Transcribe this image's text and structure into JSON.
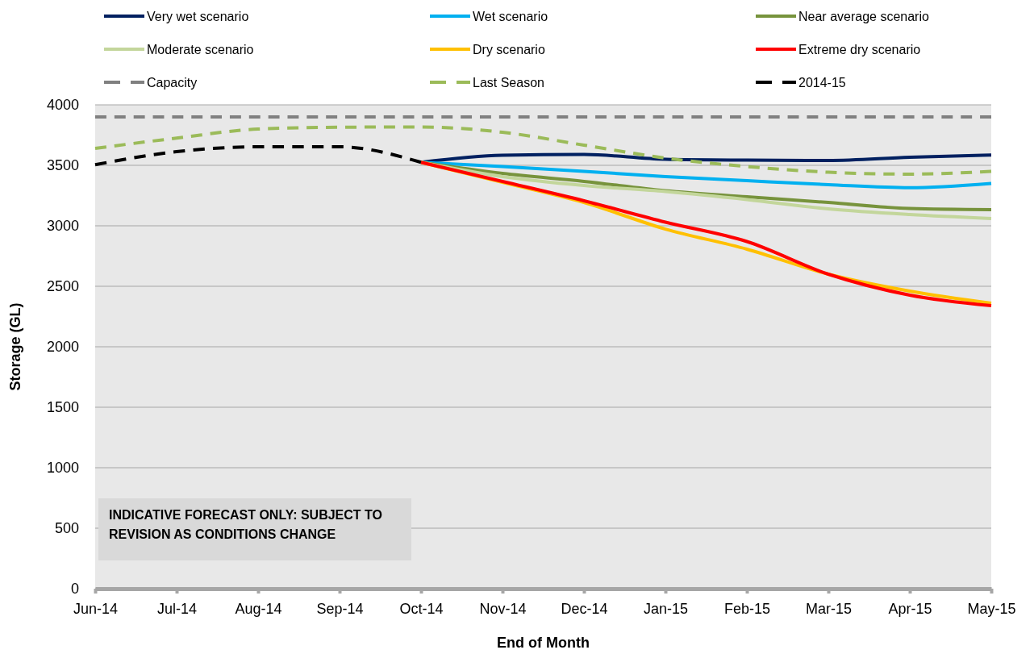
{
  "chart_data": {
    "type": "line",
    "xlabel": "End of Month",
    "ylabel": "Storage (GL)",
    "categories": [
      "Jun-14",
      "Jul-14",
      "Aug-14",
      "Sep-14",
      "Oct-14",
      "Nov-14",
      "Dec-14",
      "Jan-15",
      "Feb-15",
      "Mar-15",
      "Apr-15",
      "May-15"
    ],
    "series": [
      {
        "name": "Very wet scenario",
        "color": "#002060",
        "values": [
          null,
          null,
          null,
          null,
          3525,
          3583,
          3590,
          3550,
          3543,
          3540,
          3567,
          3585
        ]
      },
      {
        "name": "Wet scenario",
        "color": "#00b0f0",
        "values": [
          null,
          null,
          null,
          null,
          3525,
          3490,
          3450,
          3407,
          3373,
          3340,
          3315,
          3350
        ]
      },
      {
        "name": "Near average scenario",
        "color": "#77933c",
        "values": [
          null,
          null,
          null,
          null,
          3525,
          3433,
          3367,
          3290,
          3240,
          3193,
          3143,
          3133
        ]
      },
      {
        "name": "Moderate scenario",
        "color": "#c3d69b",
        "values": [
          null,
          null,
          null,
          null,
          3525,
          3407,
          3333,
          3283,
          3217,
          3140,
          3093,
          3060
        ]
      },
      {
        "name": "Dry scenario",
        "color": "#ffc000",
        "values": [
          null,
          null,
          null,
          null,
          3525,
          3360,
          3193,
          2973,
          2807,
          2600,
          2460,
          2360
        ]
      },
      {
        "name": "Extreme dry scenario",
        "color": "#ff0000",
        "values": [
          null,
          null,
          null,
          null,
          3525,
          3367,
          3207,
          3030,
          2870,
          2600,
          2427,
          2340
        ]
      },
      {
        "name": "Capacity",
        "color": "#808080",
        "line_style": "dashed",
        "values": [
          3900,
          3900,
          3900,
          3900,
          3900,
          3900,
          3900,
          3900,
          3900,
          3900,
          3900,
          3900
        ]
      },
      {
        "name": "Last Season",
        "color": "#9bbb59",
        "line_style": "dashed",
        "values": [
          3640,
          3725,
          3800,
          3815,
          3817,
          3773,
          3667,
          3560,
          3490,
          3443,
          3427,
          3450
        ]
      },
      {
        "name": "2014-15",
        "color": "#000000",
        "line_style": "dashed",
        "values": [
          3505,
          3613,
          3653,
          3653,
          3525,
          null,
          null,
          null,
          null,
          null,
          null,
          null
        ]
      }
    ],
    "ylim": [
      0,
      4000
    ],
    "yticks": [
      0,
      500,
      1000,
      1500,
      2000,
      2500,
      3000,
      3500,
      4000
    ],
    "grid": "y",
    "legend": "top",
    "line_style": "solid",
    "annotations": [
      "INDICATIVE FORECAST ONLY: SUBJECT TO REVISION AS CONDITIONS CHANGE"
    ]
  }
}
